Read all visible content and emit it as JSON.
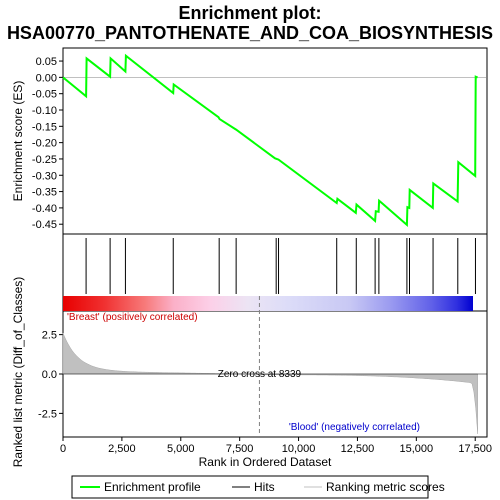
{
  "chart_data": {
    "type": "line",
    "title_line1": "Enrichment plot:",
    "title_line2": "HSA00770_PANTOTHENATE_AND_COA_BIOSYNTHESIS",
    "xlabel": "Rank in Ordered Dataset",
    "ylabel_top": "Enrichment score (ES)",
    "ylabel_bottom": "Ranked list metric (Diff_of_Classes)",
    "xlim": [
      0,
      18000
    ],
    "x_ticks": [
      0,
      2500,
      5000,
      7500,
      10000,
      12500,
      15000,
      17500
    ],
    "x_tick_labels": [
      "0",
      "2,500",
      "5,000",
      "7,500",
      "10,000",
      "12,500",
      "15,000",
      "17,500"
    ],
    "es_ylim": [
      -0.48,
      0.09
    ],
    "es_ticks": [
      0.05,
      0.0,
      -0.05,
      -0.1,
      -0.15,
      -0.2,
      -0.25,
      -0.3,
      -0.35,
      -0.4,
      -0.45
    ],
    "es_tick_labels": [
      "0.05",
      "0.00",
      "-0.05",
      "-0.10",
      "-0.15",
      "-0.20",
      "-0.25",
      "-0.30",
      "-0.35",
      "-0.40",
      "-0.45"
    ],
    "metric_ylim": [
      -4.0,
      4.0
    ],
    "metric_ticks": [
      2.5,
      0.0,
      -2.5
    ],
    "metric_tick_labels": [
      "2.5",
      "0.0",
      "-2.5"
    ],
    "enrichment_profile": [
      [
        0,
        0.0
      ],
      [
        980,
        -0.058
      ],
      [
        1000,
        0.058
      ],
      [
        2000,
        0.002
      ],
      [
        2020,
        0.058
      ],
      [
        2650,
        0.018
      ],
      [
        2670,
        0.066
      ],
      [
        4680,
        -0.048
      ],
      [
        4700,
        -0.022
      ],
      [
        6600,
        -0.122
      ],
      [
        6650,
        -0.128
      ],
      [
        7350,
        -0.16
      ],
      [
        9000,
        -0.248
      ],
      [
        9150,
        -0.252
      ],
      [
        11620,
        -0.385
      ],
      [
        11650,
        -0.372
      ],
      [
        12430,
        -0.415
      ],
      [
        12460,
        -0.39
      ],
      [
        13250,
        -0.44
      ],
      [
        13280,
        -0.41
      ],
      [
        13400,
        -0.412
      ],
      [
        13420,
        -0.378
      ],
      [
        14600,
        -0.452
      ],
      [
        14620,
        -0.398
      ],
      [
        14700,
        -0.4
      ],
      [
        14720,
        -0.345
      ],
      [
        15700,
        -0.4
      ],
      [
        15720,
        -0.325
      ],
      [
        16750,
        -0.38
      ],
      [
        16780,
        -0.26
      ],
      [
        17500,
        -0.302
      ],
      [
        17520,
        0.002
      ],
      [
        17600,
        0.0
      ]
    ],
    "hits": [
      980,
      2000,
      2650,
      4680,
      6630,
      7350,
      9050,
      9150,
      11620,
      12450,
      13250,
      13410,
      14600,
      14710,
      15710,
      16760,
      17510
    ],
    "zero_cross": 8339,
    "zero_cross_label": "Zero cross at 8339",
    "positive_label": "'Breast' (positively correlated)",
    "negative_label": "'Blood' (negatively correlated)",
    "legend": {
      "profile": "Enrichment profile",
      "hits": "Hits",
      "ranking": "Ranking metric scores"
    },
    "colors": {
      "profile": "#00ff00",
      "hits": "#000000",
      "ranking_fill": "#c0c0c0",
      "positive_text": "#cc0000",
      "negative_text": "#0000cc",
      "zero_line": "#808080"
    }
  }
}
